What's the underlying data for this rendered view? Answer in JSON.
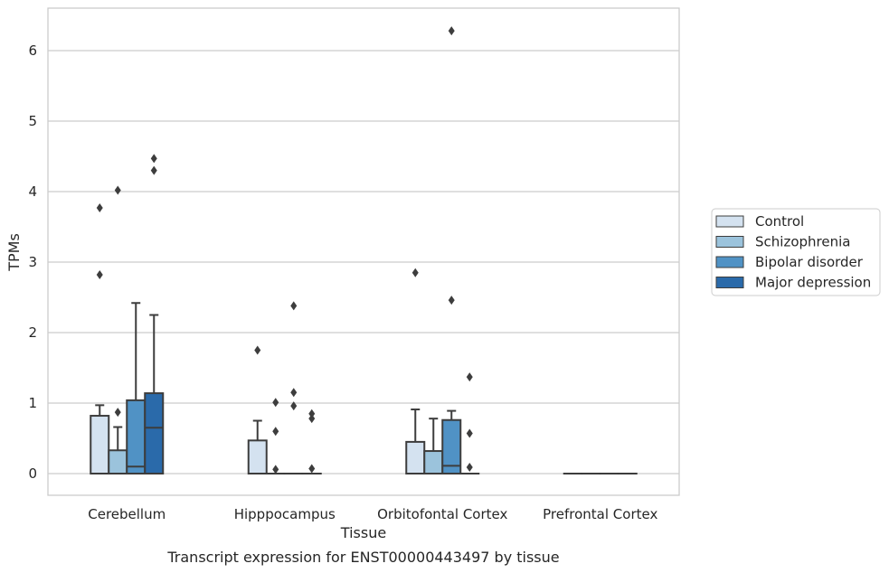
{
  "chart_data": {
    "type": "box",
    "title": "",
    "caption": "Transcript expression for ENST00000443497 by tissue",
    "xlabel": "Tissue",
    "ylabel": "TPMs",
    "ylim": [
      -0.3,
      6.6
    ],
    "yticks": [
      0,
      1,
      2,
      3,
      4,
      5,
      6
    ],
    "grid": "horizontal",
    "legend_position": "right",
    "categories": [
      "Cerebellum",
      "Hipppocampus",
      "Orbitofontal Cortex",
      "Prefrontal Cortex"
    ],
    "series": [
      {
        "name": "Control",
        "color": "#d4e2f0",
        "boxes": [
          {
            "whislo": 0,
            "q1": 0,
            "med": 0,
            "q3": 0.82,
            "whishi": 0.97,
            "fliers": [
              2.82,
              3.77
            ]
          },
          {
            "whislo": 0,
            "q1": 0,
            "med": 0,
            "q3": 0.47,
            "whishi": 0.75,
            "fliers": [
              1.75
            ]
          },
          {
            "whislo": 0,
            "q1": 0,
            "med": 0,
            "q3": 0.45,
            "whishi": 0.91,
            "fliers": [
              2.85
            ]
          },
          {
            "whislo": 0,
            "q1": 0,
            "med": 0,
            "q3": 0,
            "whishi": 0,
            "fliers": []
          }
        ]
      },
      {
        "name": "Schizophrenia",
        "color": "#9bc3dc",
        "boxes": [
          {
            "whislo": 0,
            "q1": 0,
            "med": 0,
            "q3": 0.33,
            "whishi": 0.66,
            "fliers": [
              0.87,
              4.02
            ]
          },
          {
            "whislo": 0,
            "q1": 0,
            "med": 0,
            "q3": 0,
            "whishi": 0,
            "fliers": [
              0.06,
              0.6,
              1.01
            ]
          },
          {
            "whislo": 0,
            "q1": 0,
            "med": 0,
            "q3": 0.32,
            "whishi": 0.78,
            "fliers": []
          },
          {
            "whislo": 0,
            "q1": 0,
            "med": 0,
            "q3": 0,
            "whishi": 0,
            "fliers": []
          }
        ]
      },
      {
        "name": "Bipolar disorder",
        "color": "#5092c5",
        "boxes": [
          {
            "whislo": 0,
            "q1": 0,
            "med": 0.1,
            "q3": 1.04,
            "whishi": 2.42,
            "fliers": []
          },
          {
            "whislo": 0,
            "q1": 0,
            "med": 0,
            "q3": 0,
            "whishi": 0,
            "fliers": [
              0.96,
              1.15,
              2.38
            ]
          },
          {
            "whislo": 0,
            "q1": 0,
            "med": 0.11,
            "q3": 0.76,
            "whishi": 0.89,
            "fliers": [
              2.46,
              6.28
            ]
          },
          {
            "whislo": 0,
            "q1": 0,
            "med": 0,
            "q3": 0,
            "whishi": 0,
            "fliers": []
          }
        ]
      },
      {
        "name": "Major depression",
        "color": "#2a6aaa",
        "boxes": [
          {
            "whislo": 0,
            "q1": 0,
            "med": 0.65,
            "q3": 1.14,
            "whishi": 2.25,
            "fliers": [
              4.3,
              4.47
            ]
          },
          {
            "whislo": 0,
            "q1": 0,
            "med": 0,
            "q3": 0,
            "whishi": 0,
            "fliers": [
              0.07,
              0.78,
              0.85
            ]
          },
          {
            "whislo": 0,
            "q1": 0,
            "med": 0,
            "q3": 0,
            "whishi": 0,
            "fliers": [
              0.09,
              0.57,
              1.37
            ]
          },
          {
            "whislo": 0,
            "q1": 0,
            "med": 0,
            "q3": 0,
            "whishi": 0,
            "fliers": []
          }
        ]
      }
    ]
  }
}
